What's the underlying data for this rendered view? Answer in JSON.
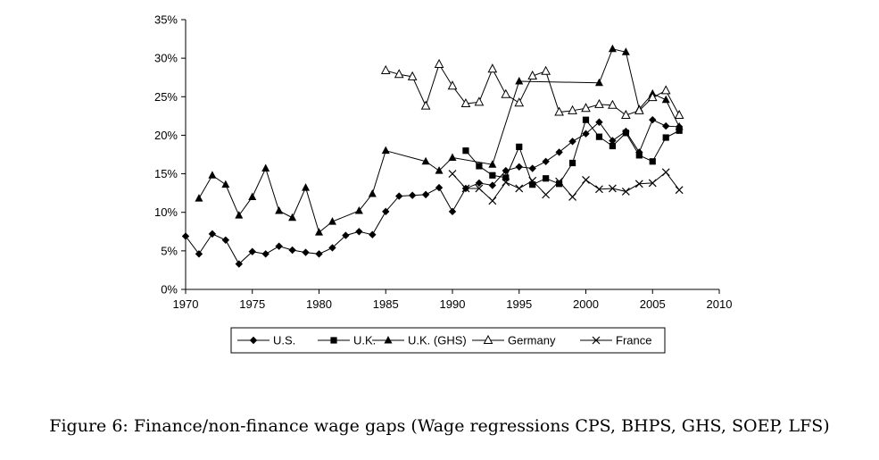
{
  "caption": "Figure 6: Finance/non-finance wage gaps (Wage regressions CPS, BHPS, GHS, SOEP, LFS)",
  "chart_data": {
    "type": "line",
    "title": "",
    "xlabel": "",
    "ylabel": "",
    "xlim": [
      1970,
      2010
    ],
    "ylim": [
      0,
      0.35
    ],
    "x_ticks": [
      1970,
      1975,
      1980,
      1985,
      1990,
      1995,
      2000,
      2005,
      2010
    ],
    "y_ticks": [
      0,
      0.05,
      0.1,
      0.15,
      0.2,
      0.25,
      0.3,
      0.35
    ],
    "y_tick_labels": [
      "0%",
      "5%",
      "10%",
      "15%",
      "20%",
      "25%",
      "30%",
      "35%"
    ],
    "grid": false,
    "legend_position": "bottom",
    "series": [
      {
        "name": "U.S.",
        "marker": "diamond",
        "color": "#000000",
        "points": [
          [
            1970,
            0.069
          ],
          [
            1971,
            0.046
          ],
          [
            1972,
            0.072
          ],
          [
            1973,
            0.064
          ],
          [
            1974,
            0.033
          ],
          [
            1975,
            0.049
          ],
          [
            1976,
            0.046
          ],
          [
            1977,
            0.056
          ],
          [
            1978,
            0.051
          ],
          [
            1979,
            0.048
          ],
          [
            1980,
            0.046
          ],
          [
            1981,
            0.054
          ],
          [
            1982,
            0.07
          ],
          [
            1983,
            0.075
          ],
          [
            1984,
            0.071
          ],
          [
            1985,
            0.101
          ],
          [
            1986,
            0.121
          ],
          [
            1987,
            0.122
          ],
          [
            1988,
            0.123
          ],
          [
            1989,
            0.132
          ],
          [
            1990,
            0.101
          ],
          [
            1991,
            0.131
          ],
          [
            1992,
            0.138
          ],
          [
            1993,
            0.135
          ],
          [
            1994,
            0.154
          ],
          [
            1995,
            0.159
          ],
          [
            1996,
            0.157
          ],
          [
            1997,
            0.166
          ],
          [
            1998,
            0.178
          ],
          [
            1999,
            0.192
          ],
          [
            2000,
            0.202
          ],
          [
            2001,
            0.217
          ],
          [
            2002,
            0.193
          ],
          [
            2003,
            0.205
          ],
          [
            2004,
            0.178
          ],
          [
            2005,
            0.22
          ],
          [
            2006,
            0.212
          ],
          [
            2007,
            0.211
          ]
        ]
      },
      {
        "name": "U.K.",
        "marker": "square",
        "color": "#000000",
        "points": [
          [
            1991,
            0.18
          ],
          [
            1992,
            0.16
          ],
          [
            1993,
            0.148
          ],
          [
            1994,
            0.145
          ],
          [
            1995,
            0.185
          ],
          [
            1996,
            0.136
          ],
          [
            1997,
            0.144
          ],
          [
            1998,
            0.137
          ],
          [
            1999,
            0.164
          ],
          [
            2000,
            0.22
          ],
          [
            2001,
            0.198
          ],
          [
            2002,
            0.186
          ],
          [
            2003,
            0.203
          ],
          [
            2004,
            0.174
          ],
          [
            2005,
            0.166
          ],
          [
            2006,
            0.197
          ],
          [
            2007,
            0.206
          ]
        ]
      },
      {
        "name": "U.K. (GHS)",
        "marker": "triangle",
        "color": "#000000",
        "points": [
          [
            1971,
            0.118
          ],
          [
            1972,
            0.148
          ],
          [
            1973,
            0.136
          ],
          [
            1974,
            0.096
          ],
          [
            1975,
            0.12
          ],
          [
            1976,
            0.157
          ],
          [
            1977,
            0.102
          ],
          [
            1978,
            0.093
          ],
          [
            1979,
            0.132
          ],
          [
            1980,
            0.074
          ],
          [
            1981,
            0.088
          ],
          [
            1983,
            0.102
          ],
          [
            1984,
            0.124
          ],
          [
            1985,
            0.18
          ],
          [
            1988,
            0.166
          ],
          [
            1989,
            0.154
          ],
          [
            1990,
            0.171
          ],
          [
            1993,
            0.162
          ],
          [
            1995,
            0.27
          ],
          [
            2001,
            0.268
          ],
          [
            2002,
            0.312
          ],
          [
            2003,
            0.308
          ],
          [
            2004,
            0.234
          ],
          [
            2005,
            0.254
          ],
          [
            2006,
            0.246
          ],
          [
            2007,
            0.211
          ]
        ]
      },
      {
        "name": "Germany",
        "marker": "triangle-open",
        "color": "#000000",
        "points": [
          [
            1985,
            0.284
          ],
          [
            1986,
            0.279
          ],
          [
            1987,
            0.276
          ],
          [
            1988,
            0.238
          ],
          [
            1989,
            0.292
          ],
          [
            1990,
            0.264
          ],
          [
            1991,
            0.241
          ],
          [
            1992,
            0.243
          ],
          [
            1993,
            0.286
          ],
          [
            1994,
            0.253
          ],
          [
            1995,
            0.242
          ],
          [
            1996,
            0.277
          ],
          [
            1997,
            0.283
          ],
          [
            1998,
            0.23
          ],
          [
            1999,
            0.232
          ],
          [
            2000,
            0.235
          ],
          [
            2001,
            0.24
          ],
          [
            2002,
            0.239
          ],
          [
            2003,
            0.226
          ],
          [
            2004,
            0.232
          ],
          [
            2005,
            0.249
          ],
          [
            2006,
            0.258
          ],
          [
            2007,
            0.226
          ]
        ]
      },
      {
        "name": "France",
        "marker": "x",
        "color": "#000000",
        "points": [
          [
            1990,
            0.15
          ],
          [
            1991,
            0.131
          ],
          [
            1992,
            0.131
          ],
          [
            1993,
            0.115
          ],
          [
            1994,
            0.139
          ],
          [
            1995,
            0.131
          ],
          [
            1996,
            0.141
          ],
          [
            1997,
            0.123
          ],
          [
            1998,
            0.14
          ],
          [
            1999,
            0.12
          ],
          [
            2000,
            0.142
          ],
          [
            2001,
            0.13
          ],
          [
            2002,
            0.131
          ],
          [
            2003,
            0.127
          ],
          [
            2004,
            0.137
          ],
          [
            2005,
            0.138
          ],
          [
            2006,
            0.152
          ],
          [
            2007,
            0.129
          ]
        ]
      }
    ]
  }
}
